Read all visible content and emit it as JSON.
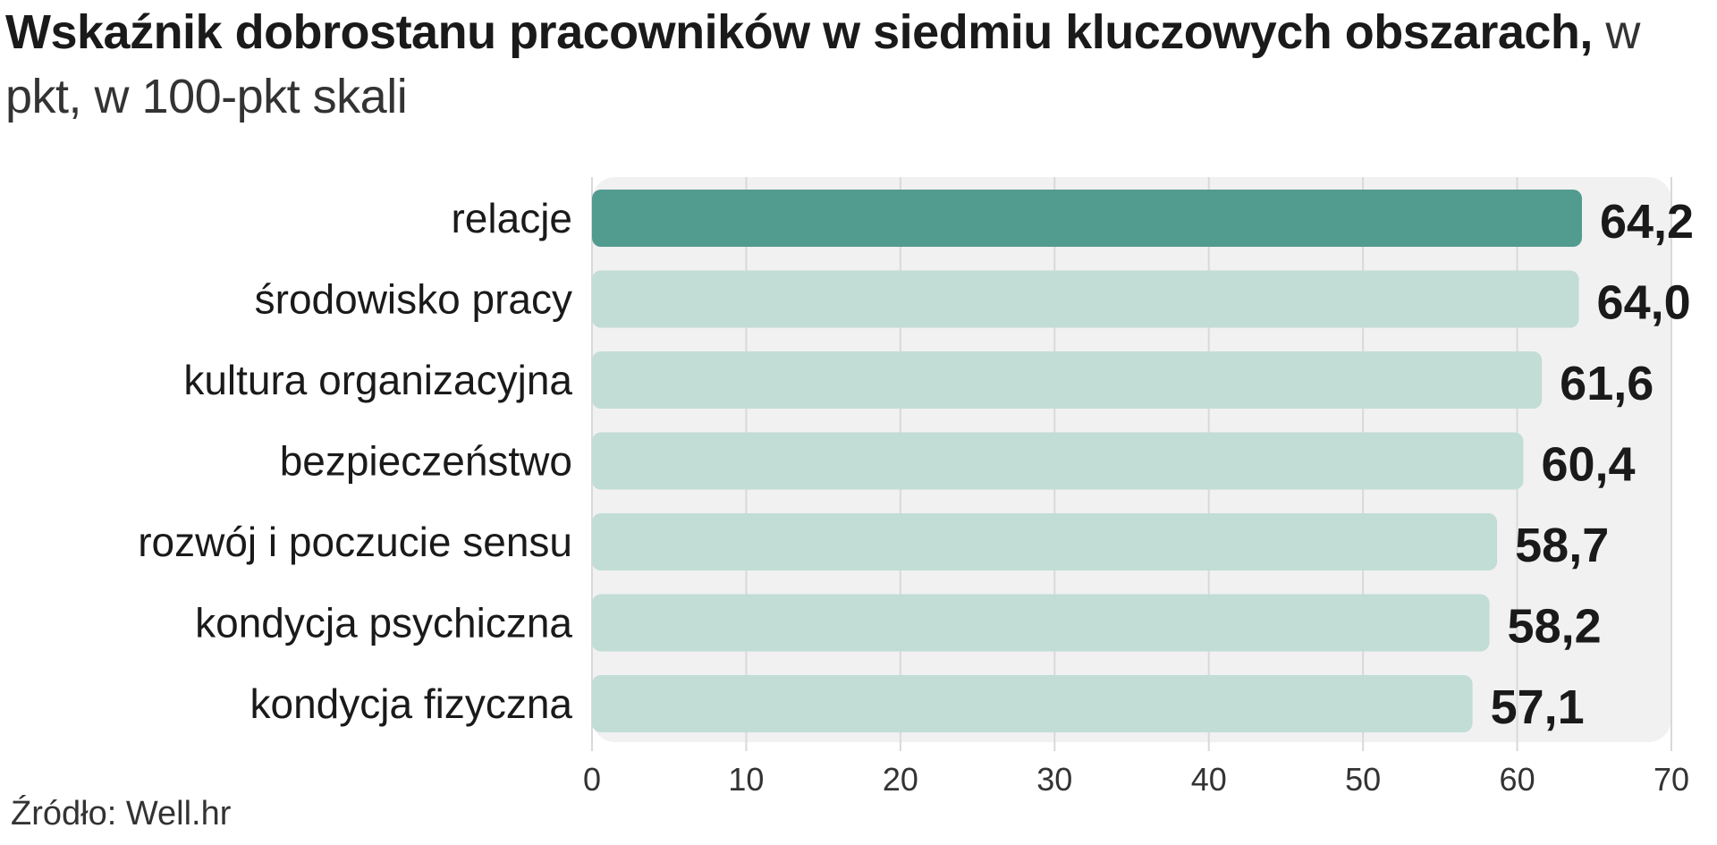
{
  "title": {
    "main": "Wskaźnik dobrostanu pracowników  w siedmiu kluczowych obszarach,",
    "sub": " w pkt, w 100-pkt skali"
  },
  "source": "Źródło: Well.hr",
  "colors": {
    "highlight_bar": "#529b8f",
    "default_bar": "#c1ddd6",
    "plot_background": "#f1f1f1",
    "grid": "#d9d9d9",
    "text": "#1a1a1a"
  },
  "chart_data": {
    "type": "bar",
    "orientation": "horizontal",
    "categories": [
      "relacje",
      "środowisko pracy",
      "kultura organizacyjna",
      "bezpieczeństwo",
      "rozwój i poczucie sensu",
      "kondycja psychiczna",
      "kondycja fizyczna"
    ],
    "values": [
      64.2,
      64.0,
      61.6,
      60.4,
      58.7,
      58.2,
      57.1
    ],
    "value_labels": [
      "64,2",
      "64,0",
      "61,6",
      "60,4",
      "58,7",
      "58,2",
      "57,1"
    ],
    "highlighted_index": 0,
    "xlim": [
      0,
      70
    ],
    "xticks": [
      0,
      10,
      20,
      30,
      40,
      50,
      60,
      70
    ],
    "grid": true,
    "legend": "none"
  }
}
